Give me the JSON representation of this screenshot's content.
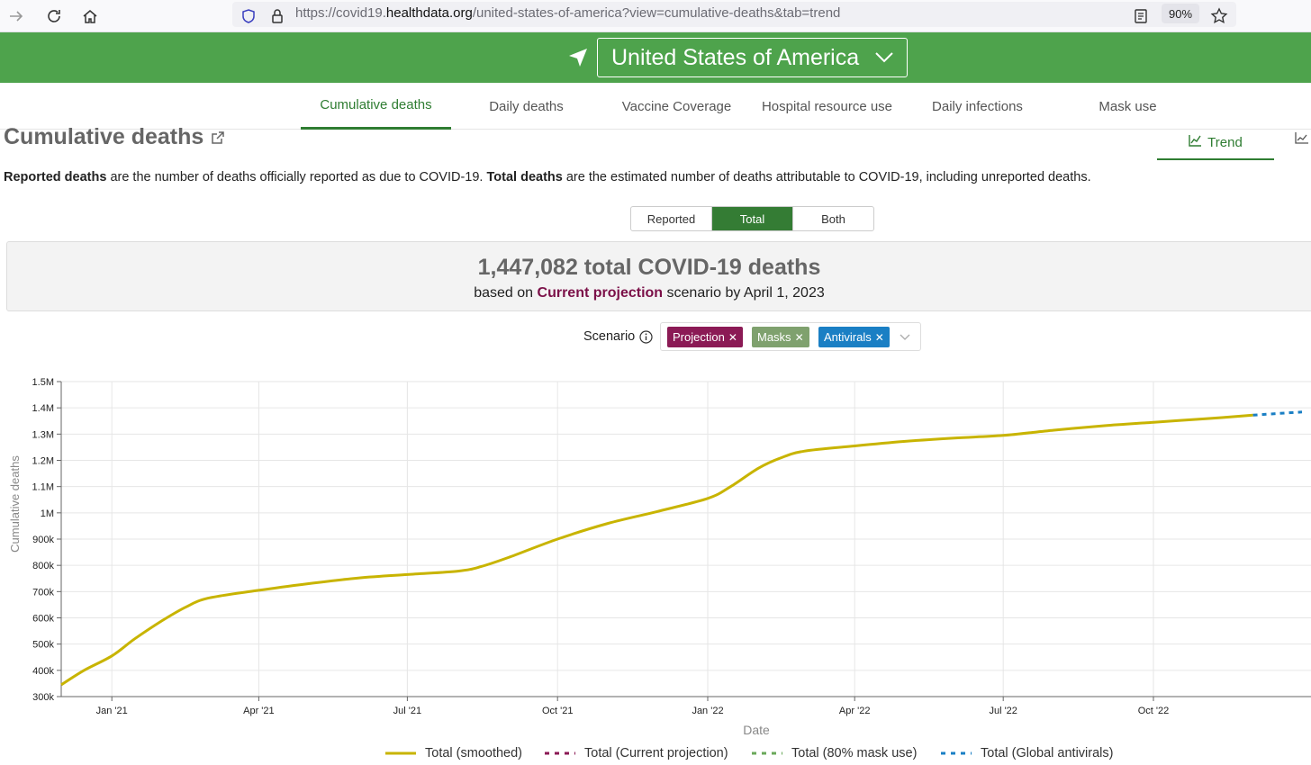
{
  "browser": {
    "url_prefix": "https://covid19.",
    "url_host": "healthdata.org",
    "url_path": "/united-states-of-america?view=cumulative-deaths&tab=trend",
    "zoom": "90%"
  },
  "header": {
    "location": "United States of America",
    "bg_color": "#4ea34c"
  },
  "tabs": [
    {
      "label": "Cumulative deaths",
      "active": true
    },
    {
      "label": "Daily deaths"
    },
    {
      "label": "Vaccine Coverage"
    },
    {
      "label": "Hospital resource use"
    },
    {
      "label": "Daily infections"
    },
    {
      "label": "Mask use"
    }
  ],
  "section": {
    "title": "Cumulative deaths",
    "view_tab": "Trend"
  },
  "description": {
    "term1": "Reported deaths",
    "text1": " are the number of deaths officially reported as due to COVID-19. ",
    "term2": "Total deaths",
    "text2": " are the estimated number of deaths attributable to COVID-19, including unreported deaths."
  },
  "toggle": {
    "options": [
      "Reported",
      "Total",
      "Both"
    ],
    "selected": "Total"
  },
  "summary": {
    "count": "1,447,082",
    "count_text": " total COVID-19 deaths",
    "based_on": "based on ",
    "scenario": "Current projection",
    "rest": " scenario by April 1, 2023"
  },
  "scenario": {
    "label": "Scenario",
    "chips": [
      {
        "label": "Projection",
        "color": "#8b1a55"
      },
      {
        "label": "Masks",
        "color": "#7fa16e"
      },
      {
        "label": "Antivirals",
        "color": "#1a7fc4"
      }
    ]
  },
  "chart_data": {
    "type": "line",
    "xlabel": "Date",
    "ylabel": "Cumulative deaths",
    "ylim": [
      300000,
      1500000
    ],
    "y_ticks": [
      "300k",
      "400k",
      "500k",
      "600k",
      "700k",
      "800k",
      "900k",
      "1M",
      "1.1M",
      "1.2M",
      "1.3M",
      "1.4M",
      "1.5M"
    ],
    "x_ticks": [
      {
        "label": "Jan '21",
        "date": "2021-01-01"
      },
      {
        "label": "Apr '21",
        "date": "2021-04-01"
      },
      {
        "label": "Jul '21",
        "date": "2021-07-01"
      },
      {
        "label": "Oct '21",
        "date": "2021-10-01"
      },
      {
        "label": "Jan '22",
        "date": "2022-01-01"
      },
      {
        "label": "Apr '22",
        "date": "2022-04-01"
      },
      {
        "label": "Jul '22",
        "date": "2022-07-01"
      },
      {
        "label": "Oct '22",
        "date": "2022-10-01"
      }
    ],
    "grid": true,
    "legend_position": "bottom",
    "series": [
      {
        "name": "Total (smoothed)",
        "color": "#c8b400",
        "style": "solid",
        "points": [
          [
            "2020-12-01",
            345000
          ],
          [
            "2020-12-15",
            400000
          ],
          [
            "2021-01-01",
            455000
          ],
          [
            "2021-01-15",
            520000
          ],
          [
            "2021-02-01",
            590000
          ],
          [
            "2021-02-15",
            640000
          ],
          [
            "2021-03-01",
            675000
          ],
          [
            "2021-04-01",
            705000
          ],
          [
            "2021-05-01",
            730000
          ],
          [
            "2021-06-01",
            752000
          ],
          [
            "2021-07-01",
            765000
          ],
          [
            "2021-08-01",
            778000
          ],
          [
            "2021-08-15",
            795000
          ],
          [
            "2021-09-01",
            830000
          ],
          [
            "2021-10-01",
            900000
          ],
          [
            "2021-11-01",
            960000
          ],
          [
            "2021-12-01",
            1005000
          ],
          [
            "2022-01-01",
            1055000
          ],
          [
            "2022-01-15",
            1100000
          ],
          [
            "2022-02-01",
            1170000
          ],
          [
            "2022-02-15",
            1210000
          ],
          [
            "2022-03-01",
            1235000
          ],
          [
            "2022-04-01",
            1255000
          ],
          [
            "2022-05-01",
            1272000
          ],
          [
            "2022-06-01",
            1285000
          ],
          [
            "2022-07-01",
            1295000
          ],
          [
            "2022-08-01",
            1315000
          ],
          [
            "2022-09-01",
            1332000
          ],
          [
            "2022-10-01",
            1345000
          ],
          [
            "2022-11-01",
            1358000
          ],
          [
            "2022-12-01",
            1372000
          ]
        ]
      },
      {
        "name": "Total (Current projection)",
        "color": "#8b1a55",
        "style": "dashed",
        "points": []
      },
      {
        "name": "Total (80% mask use)",
        "color": "#6aa85a",
        "style": "dashed",
        "points": []
      },
      {
        "name": "Total (Global antivirals)",
        "color": "#1a7fc4",
        "style": "dashed",
        "points": [
          [
            "2022-12-01",
            1372000
          ],
          [
            "2022-12-15",
            1378000
          ],
          [
            "2022-12-31",
            1384000
          ]
        ]
      }
    ]
  }
}
